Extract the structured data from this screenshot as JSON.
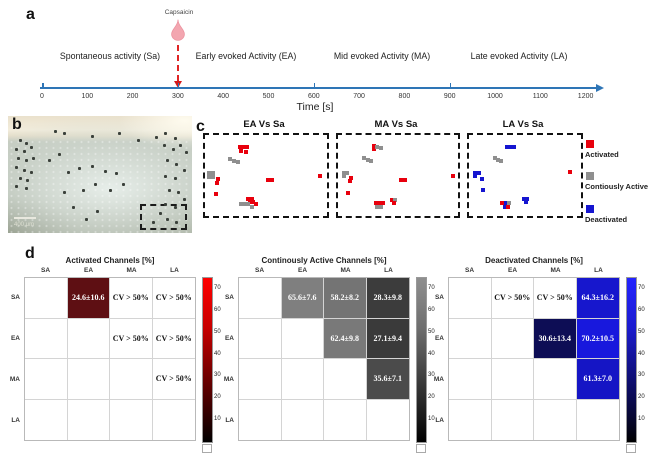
{
  "figure": {
    "panel_a": {
      "label": "a",
      "capsaicin_label": "Capsaicin",
      "phases": [
        "Spontaneous activity (Sa)",
        "Early evoked Activity (EA)",
        "Mid evoked Activity (MA)",
        "Late evoked Activity (LA)"
      ],
      "time_axis": {
        "label": "Time [s]",
        "ticks": [
          "0",
          "100",
          "200",
          "300",
          "400",
          "500",
          "600",
          "700",
          "800",
          "900",
          "1000",
          "1100",
          "1200"
        ],
        "axis_color": "#2e75b6",
        "event_color": "#d61a1a"
      }
    },
    "panel_b": {
      "label": "b",
      "scale_bar_label": "400 μm",
      "dots": [
        [
          6,
          20
        ],
        [
          9,
          22
        ],
        [
          4,
          27
        ],
        [
          8,
          29
        ],
        [
          12,
          26
        ],
        [
          5,
          35
        ],
        [
          9,
          37
        ],
        [
          13,
          35
        ],
        [
          4,
          43
        ],
        [
          8,
          45
        ],
        [
          12,
          47
        ],
        [
          6,
          52
        ],
        [
          10,
          54
        ],
        [
          4,
          59
        ],
        [
          9,
          61
        ],
        [
          22,
          37
        ],
        [
          27,
          32
        ],
        [
          32,
          47
        ],
        [
          38,
          44
        ],
        [
          45,
          42
        ],
        [
          52,
          46
        ],
        [
          58,
          48
        ],
        [
          47,
          57
        ],
        [
          40,
          62
        ],
        [
          30,
          64
        ],
        [
          55,
          62
        ],
        [
          62,
          57
        ],
        [
          35,
          77
        ],
        [
          48,
          80
        ],
        [
          42,
          87
        ],
        [
          80,
          17
        ],
        [
          85,
          14
        ],
        [
          90,
          18
        ],
        [
          84,
          24
        ],
        [
          89,
          27
        ],
        [
          93,
          24
        ],
        [
          86,
          37
        ],
        [
          91,
          40
        ],
        [
          85,
          50
        ],
        [
          90,
          52
        ],
        [
          87,
          62
        ],
        [
          92,
          64
        ],
        [
          85,
          74
        ],
        [
          90,
          77
        ],
        [
          86,
          87
        ],
        [
          91,
          90
        ],
        [
          82,
          82
        ],
        [
          78,
          90
        ],
        [
          30,
          14
        ],
        [
          45,
          16
        ],
        [
          60,
          14
        ],
        [
          70,
          20
        ],
        [
          25,
          12
        ],
        [
          95,
          45
        ],
        [
          95,
          70
        ],
        [
          96,
          30
        ]
      ]
    },
    "panel_c": {
      "label": "c",
      "plots": [
        {
          "title": "EA Vs Sa",
          "points": [
            [
              27,
              12,
              "a"
            ],
            [
              30,
              12,
              "a"
            ],
            [
              33,
              12,
              "a"
            ],
            [
              28,
              17,
              "a"
            ],
            [
              32,
              18,
              "a"
            ],
            [
              19,
              27,
              "c"
            ],
            [
              22,
              30,
              "c"
            ],
            [
              25,
              31,
              "c"
            ],
            [
              2,
              45,
              "c"
            ],
            [
              5,
              45,
              "c"
            ],
            [
              2,
              49,
              "c"
            ],
            [
              5,
              49,
              "c"
            ],
            [
              9,
              52,
              "a"
            ],
            [
              8,
              57,
              "a"
            ],
            [
              7,
              70,
              "a"
            ],
            [
              50,
              53,
              "a"
            ],
            [
              53,
              53,
              "a"
            ],
            [
              93,
              48,
              "a"
            ],
            [
              34,
              76,
              "a"
            ],
            [
              37,
              76,
              "a"
            ],
            [
              35,
              80,
              "a"
            ],
            [
              38,
              80,
              "a"
            ],
            [
              28,
              83,
              "c"
            ],
            [
              31,
              83,
              "c"
            ],
            [
              34,
              83,
              "c"
            ],
            [
              37,
              86,
              "c"
            ],
            [
              40,
              83,
              "a"
            ]
          ]
        },
        {
          "title": "MA Vs Sa",
          "points": [
            [
              28,
              11,
              "a"
            ],
            [
              28,
              15,
              "a"
            ],
            [
              31,
              12,
              "c"
            ],
            [
              34,
              13,
              "c"
            ],
            [
              20,
              26,
              "c"
            ],
            [
              23,
              29,
              "c"
            ],
            [
              26,
              30,
              "c"
            ],
            [
              3,
              44,
              "c"
            ],
            [
              6,
              44,
              "c"
            ],
            [
              3,
              48,
              "c"
            ],
            [
              9,
              50,
              "a"
            ],
            [
              8,
              54,
              "a"
            ],
            [
              7,
              69,
              "a"
            ],
            [
              51,
              53,
              "a"
            ],
            [
              54,
              53,
              "a"
            ],
            [
              94,
              48,
              "a"
            ],
            [
              30,
              82,
              "a"
            ],
            [
              33,
              82,
              "a"
            ],
            [
              36,
              82,
              "a"
            ],
            [
              31,
              86,
              "c"
            ],
            [
              34,
              86,
              "c"
            ],
            [
              43,
              78,
              "a"
            ],
            [
              46,
              78,
              "c"
            ],
            [
              45,
              82,
              "a"
            ]
          ]
        },
        {
          "title": "LA Vs Sa",
          "points": [
            [
              32,
              12,
              "d"
            ],
            [
              35,
              12,
              "d"
            ],
            [
              38,
              12,
              "d"
            ],
            [
              21,
              26,
              "c"
            ],
            [
              24,
              29,
              "c"
            ],
            [
              27,
              30,
              "c"
            ],
            [
              4,
              44,
              "d"
            ],
            [
              7,
              44,
              "d"
            ],
            [
              4,
              48,
              "d"
            ],
            [
              10,
              52,
              "d"
            ],
            [
              11,
              66,
              "d"
            ],
            [
              88,
              43,
              "a"
            ],
            [
              28,
              82,
              "a"
            ],
            [
              31,
              82,
              "d"
            ],
            [
              34,
              82,
              "c"
            ],
            [
              30,
              86,
              "d"
            ],
            [
              33,
              86,
              "a"
            ],
            [
              47,
              76,
              "d"
            ],
            [
              50,
              76,
              "d"
            ],
            [
              49,
              80,
              "d"
            ]
          ]
        }
      ],
      "legend": [
        {
          "key": "a",
          "label": "Activated",
          "color": "#e8000d"
        },
        {
          "key": "c",
          "label": "Contiously Active",
          "color": "#8f8f8f"
        },
        {
          "key": "d",
          "label": "Deactivated",
          "color": "#1515d0"
        }
      ]
    },
    "panel_d": {
      "label": "d",
      "row_labels": [
        "SA",
        "EA",
        "MA",
        "LA"
      ],
      "col_labels": [
        "SA",
        "EA",
        "MA",
        "LA"
      ],
      "colorbar_ticks": [
        "70",
        "60",
        "50",
        "40",
        "30",
        "20",
        "10"
      ],
      "heatmaps": [
        {
          "title": "Activated Channels [%]",
          "bar_colors": [
            "#ff0000",
            "#c80000",
            "#700000",
            "#1e0000",
            "#000000"
          ],
          "cells": [
            [
              "",
              "24.6±10.6",
              "CV > 50%",
              "CV > 50%"
            ],
            [
              "",
              "",
              "CV > 50%",
              "CV > 50%"
            ],
            [
              "",
              "",
              "",
              "CV > 50%"
            ],
            [
              "",
              "",
              "",
              ""
            ]
          ],
          "cell_bg": [
            [
              "",
              "#5e0f13",
              "",
              ""
            ],
            [
              "",
              "",
              "",
              ""
            ],
            [
              "",
              "",
              "",
              ""
            ],
            [
              "",
              "",
              "",
              ""
            ]
          ]
        },
        {
          "title": "Continously Active Channels [%]",
          "bar_colors": [
            "#8f8f8f",
            "#6f6f6f",
            "#404040",
            "#111111",
            "#000000"
          ],
          "cells": [
            [
              "",
              "65.6±7.6",
              "58.2±8.2",
              "28.3±9.8"
            ],
            [
              "",
              "",
              "62.4±9.8",
              "27.1±9.4"
            ],
            [
              "",
              "",
              "",
              "35.6±7.1"
            ],
            [
              "",
              "",
              "",
              ""
            ]
          ],
          "cell_bg": [
            [
              "",
              "#7f7f7f",
              "#747474",
              "#3c3c3c"
            ],
            [
              "",
              "",
              "#797979",
              "#3a3a3a"
            ],
            [
              "",
              "",
              "",
              "#4b4b4b"
            ],
            [
              "",
              "",
              "",
              ""
            ]
          ]
        },
        {
          "title": "Deactivated Channels [%]",
          "bar_colors": [
            "#2424ff",
            "#1c1ccf",
            "#0f0f78",
            "#050522",
            "#000000"
          ],
          "cells": [
            [
              "",
              "CV > 50%",
              "CV > 50%",
              "64.3±16.2"
            ],
            [
              "",
              "",
              "30.6±13.4",
              "70.2±10.5"
            ],
            [
              "",
              "",
              "",
              "61.3±7.0"
            ],
            [
              "",
              "",
              "",
              ""
            ]
          ],
          "cell_bg": [
            [
              "",
              "",
              "",
              "#1717cd"
            ],
            [
              "",
              "",
              "#0d0d55",
              "#1818dd"
            ],
            [
              "",
              "",
              "",
              "#1515c5"
            ],
            [
              "",
              "",
              "",
              ""
            ]
          ]
        }
      ]
    }
  }
}
